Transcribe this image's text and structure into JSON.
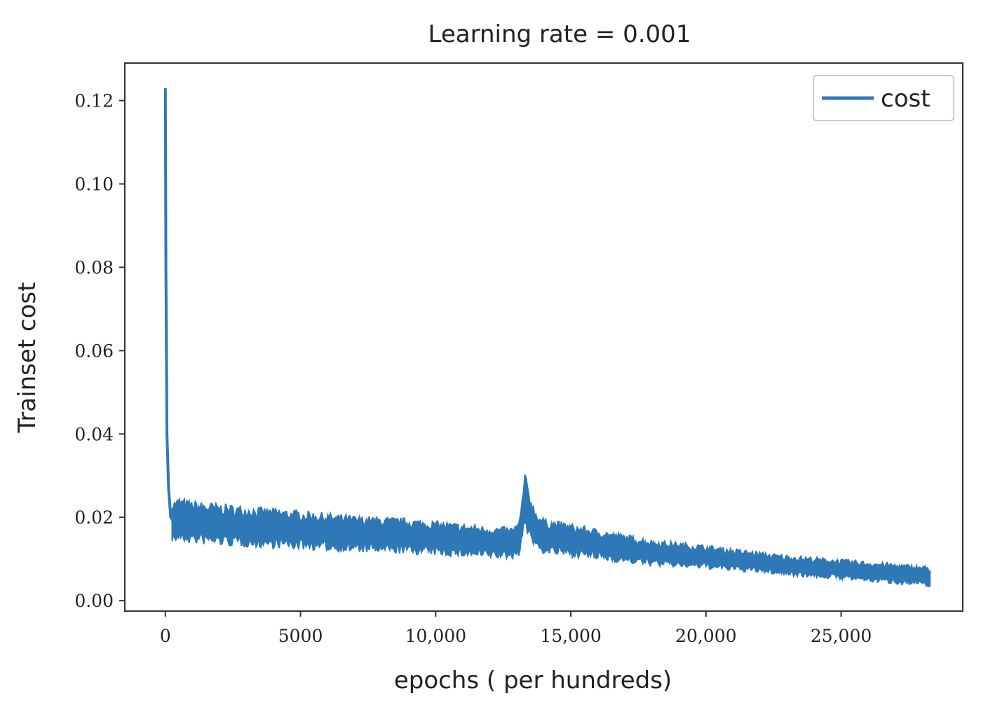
{
  "chart_data": {
    "type": "line",
    "title": "Learning rate = 0.001",
    "xlabel": "epochs ( per hundreds)",
    "ylabel": "Trainset cost",
    "xlim": [
      -1500,
      29500
    ],
    "ylim": [
      -0.0025,
      0.129
    ],
    "x_ticks": [
      0,
      5000,
      10000,
      15000,
      20000,
      25000
    ],
    "x_tick_labels": [
      "0",
      "5000",
      "10,000",
      "15,000",
      "20,000",
      "25,000"
    ],
    "y_ticks": [
      0.0,
      0.02,
      0.04,
      0.06,
      0.08,
      0.1,
      0.12
    ],
    "y_tick_labels": [
      "0.00",
      "0.02",
      "0.04",
      "0.06",
      "0.08",
      "0.10",
      "0.12"
    ],
    "grid": false,
    "legend_position": "top-right",
    "series": [
      {
        "name": "cost",
        "color": "#2e78b7",
        "x": [
          0,
          20,
          60,
          120,
          200,
          300,
          500,
          800,
          1000,
          1500,
          2000,
          2500,
          3000,
          3500,
          4000,
          5000,
          6000,
          7000,
          8000,
          9000,
          10000,
          11000,
          12000,
          12800,
          13100,
          13300,
          13500,
          13700,
          14000,
          15000,
          16000,
          17000,
          18000,
          19000,
          20000,
          21000,
          22000,
          23000,
          24000,
          25000,
          26000,
          27000,
          27500,
          28000,
          28300
        ],
        "y": [
          0.123,
          0.08,
          0.04,
          0.027,
          0.02,
          0.019,
          0.0195,
          0.019,
          0.0188,
          0.0185,
          0.0183,
          0.018,
          0.0178,
          0.0176,
          0.0174,
          0.017,
          0.0165,
          0.016,
          0.0158,
          0.0155,
          0.015,
          0.0145,
          0.014,
          0.0138,
          0.015,
          0.024,
          0.02,
          0.017,
          0.0155,
          0.0145,
          0.0135,
          0.0125,
          0.0115,
          0.011,
          0.0105,
          0.0098,
          0.0092,
          0.0085,
          0.008,
          0.0075,
          0.007,
          0.0065,
          0.0062,
          0.006,
          0.0058
        ]
      }
    ]
  }
}
